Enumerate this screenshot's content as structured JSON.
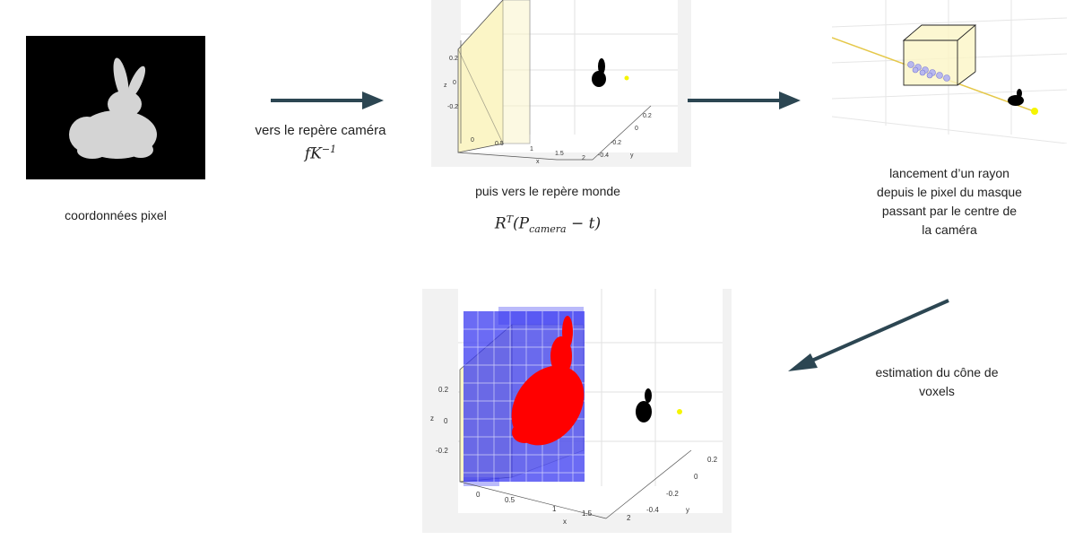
{
  "steps": {
    "pixel": {
      "caption": "coordonnées pixel"
    },
    "camera": {
      "caption": "vers le repère caméra",
      "formula_base": "fK",
      "formula_exp": "−1"
    },
    "world": {
      "caption": "puis vers le repère monde",
      "formula_R": "R",
      "formula_T": "T",
      "formula_open": "(P",
      "formula_sub": "camera",
      "formula_tail": " − t)"
    },
    "ray": {
      "caption_lines": [
        "lancement d’un rayon",
        "depuis le pixel du masque",
        "passant par le centre de",
        "la caméra"
      ]
    },
    "voxels": {
      "caption_lines": [
        "estimation du cône de",
        "voxels"
      ]
    }
  },
  "plot_axes": {
    "z_label": "z",
    "x_label": "x",
    "y_label": "y",
    "z_ticks": [
      "0.2",
      "0",
      "-0.2"
    ],
    "x_ticks": [
      "0",
      "0.5",
      "1",
      "1.5",
      "2"
    ],
    "y_ticks": [
      "0.2",
      "0",
      "-0.2",
      "-0.4"
    ]
  },
  "colors": {
    "arrow": "#2c4652",
    "mask_bg": "#000000",
    "bunny_mask": "#d4d4d4",
    "image_plane": "#fbf5c6",
    "voxel": "#3a3af0",
    "bunny_3d": "#ff0000",
    "camera_center": "#f5f500"
  }
}
